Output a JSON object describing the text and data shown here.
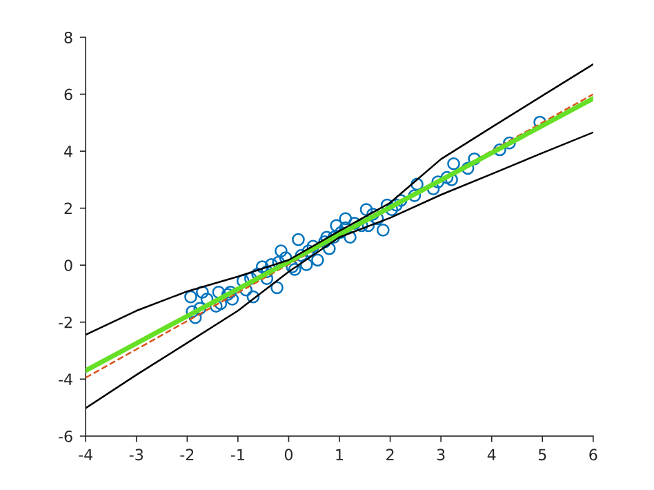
{
  "chart_data": {
    "type": "scatter",
    "xlim": [
      -4,
      6
    ],
    "ylim": [
      -6,
      8
    ],
    "xticks": [
      -4,
      -3,
      -2,
      -1,
      0,
      1,
      2,
      3,
      4,
      5,
      6
    ],
    "yticks": [
      -6,
      -4,
      -2,
      0,
      2,
      4,
      6,
      8
    ],
    "grid": false,
    "legend": false,
    "series": [
      {
        "color": "#0072bd",
        "marker": "circle",
        "x": [
          -1.93,
          -1.9,
          -1.84,
          -1.7,
          -1.61,
          -1.75,
          -1.38,
          -1.34,
          -1.2,
          -1.11,
          -1.15,
          -0.9,
          -0.84,
          -0.7,
          -0.75,
          -0.61,
          -0.52,
          -0.43,
          -0.34,
          -0.23,
          -0.15,
          -0.2,
          -0.06,
          0.07,
          0.12,
          0.19,
          0.25,
          0.39,
          0.48,
          0.57,
          0.71,
          0.8,
          0.89,
          0.94,
          1.03,
          1.12,
          1.21,
          1.3,
          1.44,
          1.53,
          1.57,
          1.66,
          1.75,
          1.86,
          1.94,
          2.03,
          2.12,
          2.21,
          2.48,
          2.53,
          2.85,
          2.94,
          3.12,
          3.21,
          3.25,
          3.53,
          3.66,
          4.16,
          4.35,
          4.95,
          1.12,
          0.75,
          0.35,
          -0.43,
          -1.43
        ],
        "values": [
          -1.11,
          -1.63,
          -1.84,
          -0.95,
          -1.19,
          -1.52,
          -0.95,
          -1.35,
          -1.03,
          -1.19,
          -0.95,
          -0.55,
          -0.87,
          -1.11,
          -0.47,
          -0.31,
          -0.06,
          -0.23,
          0.02,
          -0.79,
          0.5,
          0.1,
          0.26,
          -0.06,
          -0.15,
          0.9,
          0.34,
          0.5,
          0.66,
          0.18,
          0.82,
          0.58,
          0.98,
          1.39,
          1.15,
          1.31,
          0.98,
          1.47,
          1.39,
          1.95,
          1.39,
          1.79,
          1.63,
          1.23,
          2.11,
          1.95,
          2.11,
          2.27,
          2.44,
          2.84,
          2.68,
          2.92,
          3.08,
          3.0,
          3.56,
          3.4,
          3.73,
          4.05,
          4.29,
          5.02,
          1.63,
          0.98,
          0.02,
          -0.47,
          -1.44
        ]
      },
      {
        "type": "line",
        "color": "#d95319",
        "line_style": "dashed",
        "x": [
          -4,
          6
        ],
        "values": [
          -3.95,
          6.0
        ]
      },
      {
        "type": "line",
        "color": "#66e026",
        "line_style": "solid",
        "x": [
          -4,
          6
        ],
        "values": [
          -3.7,
          5.85
        ]
      },
      {
        "type": "line",
        "color": "#000000",
        "line_style": "solid",
        "x": [
          -4,
          -3,
          -2,
          -1,
          0,
          1,
          2,
          3,
          4,
          5,
          6
        ],
        "values": [
          -2.44,
          -1.6,
          -0.92,
          -0.4,
          0.18,
          1.2,
          2.19,
          3.72,
          4.84,
          5.95,
          7.05
        ]
      },
      {
        "type": "line",
        "color": "#000000",
        "line_style": "solid",
        "x": [
          -4,
          -3,
          -2,
          -1,
          0,
          1,
          2,
          3,
          4,
          5,
          6
        ],
        "values": [
          -5.02,
          -3.85,
          -2.73,
          -1.6,
          -0.23,
          0.98,
          1.66,
          2.47,
          3.2,
          3.94,
          4.66
        ]
      }
    ]
  }
}
